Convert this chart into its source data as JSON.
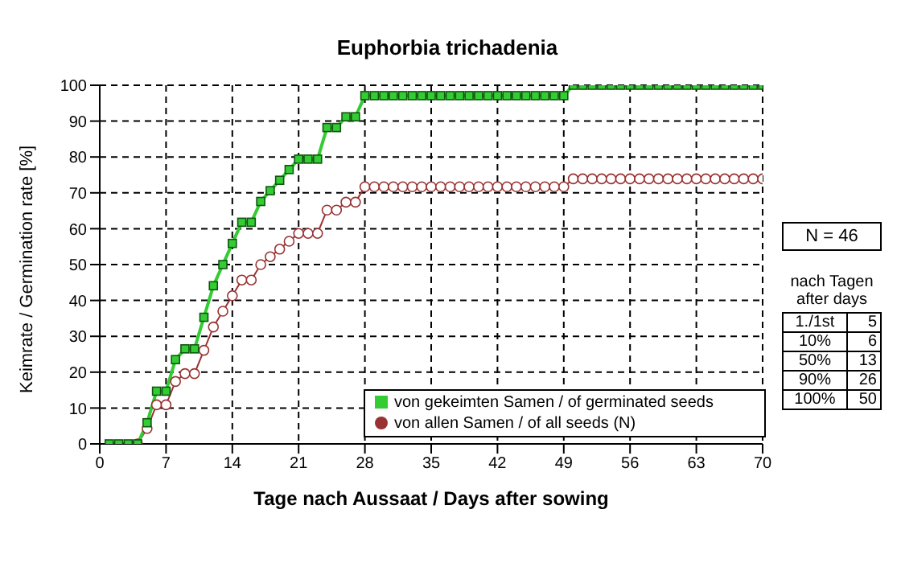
{
  "chart_data": {
    "type": "line",
    "title": "Euphorbia trichadenia",
    "xlabel": "Tage nach Aussaat / Days after sowing",
    "ylabel": "Keimrate / Germination rate [%]",
    "x": [
      1,
      2,
      3,
      4,
      5,
      6,
      7,
      8,
      9,
      10,
      11,
      12,
      13,
      14,
      15,
      16,
      17,
      18,
      19,
      20,
      21,
      22,
      23,
      24,
      25,
      26,
      27,
      28,
      29,
      30,
      31,
      32,
      33,
      34,
      35,
      36,
      37,
      38,
      39,
      40,
      41,
      42,
      43,
      44,
      45,
      46,
      47,
      48,
      49,
      50,
      51,
      52,
      53,
      54,
      55,
      56,
      57,
      58,
      59,
      60,
      61,
      62,
      63,
      64,
      65,
      66,
      67,
      68,
      69,
      70
    ],
    "series": [
      {
        "name": "von gekeimten Samen / of germinated seeds",
        "color": "#33cc33",
        "marker": "square",
        "values": [
          0,
          0,
          0,
          0,
          5.9,
          14.7,
          14.7,
          23.5,
          26.5,
          26.5,
          35.3,
          44.1,
          50.0,
          55.9,
          61.8,
          61.8,
          67.6,
          70.6,
          73.5,
          76.5,
          79.4,
          79.4,
          79.4,
          88.2,
          88.2,
          91.2,
          91.2,
          97.1,
          97.1,
          97.1,
          97.1,
          97.1,
          97.1,
          97.1,
          97.1,
          97.1,
          97.1,
          97.1,
          97.1,
          97.1,
          97.1,
          97.1,
          97.1,
          97.1,
          97.1,
          97.1,
          97.1,
          97.1,
          97.1,
          100,
          100,
          100,
          100,
          100,
          100,
          100,
          100,
          100,
          100,
          100,
          100,
          100,
          100,
          100,
          100,
          100,
          100,
          100,
          100,
          100
        ]
      },
      {
        "name": "von allen Samen / of all seeds (N)",
        "color": "#993333",
        "marker": "circle",
        "values": [
          null,
          null,
          null,
          0,
          4.3,
          10.9,
          10.9,
          17.4,
          19.6,
          19.6,
          26.1,
          32.6,
          37.0,
          41.3,
          45.7,
          45.7,
          50.0,
          52.2,
          54.3,
          56.5,
          58.7,
          58.7,
          58.7,
          65.2,
          65.2,
          67.4,
          67.4,
          71.7,
          71.7,
          71.7,
          71.7,
          71.7,
          71.7,
          71.7,
          71.7,
          71.7,
          71.7,
          71.7,
          71.7,
          71.7,
          71.7,
          71.7,
          71.7,
          71.7,
          71.7,
          71.7,
          71.7,
          71.7,
          71.7,
          73.9,
          73.9,
          73.9,
          73.9,
          73.9,
          73.9,
          73.9,
          73.9,
          73.9,
          73.9,
          73.9,
          73.9,
          73.9,
          73.9,
          73.9,
          73.9,
          73.9,
          73.9,
          73.9,
          73.9,
          73.9
        ]
      }
    ],
    "xlim": [
      0,
      70
    ],
    "xticks": [
      0,
      7,
      14,
      21,
      28,
      35,
      42,
      49,
      56,
      63,
      70
    ],
    "ylim": [
      0,
      100
    ],
    "yticks": [
      0,
      10,
      20,
      30,
      40,
      50,
      60,
      70,
      80,
      90,
      100
    ],
    "grid": true,
    "legend": "bottom right",
    "annotations": [
      "N = 46",
      "nach Tagen",
      "after days",
      "1./1st",
      "5",
      "10%",
      "6",
      "50%",
      "13",
      "90%",
      "26",
      "100%",
      "50"
    ]
  }
}
